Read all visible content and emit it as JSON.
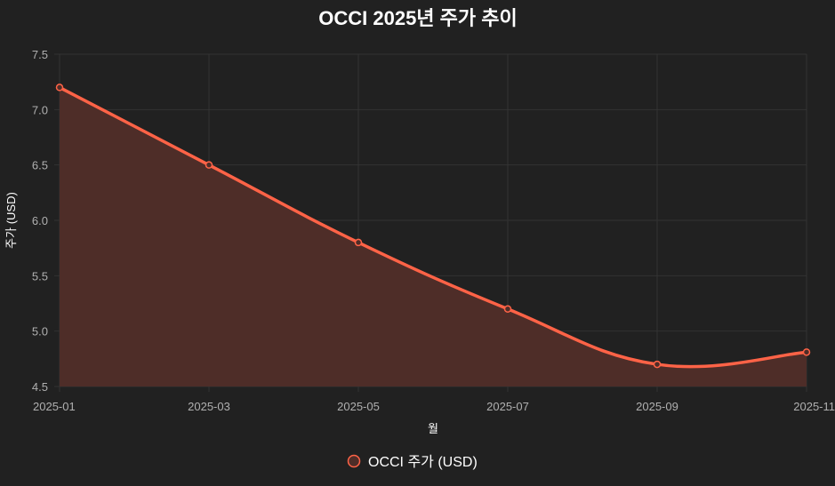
{
  "chart_data": {
    "type": "area",
    "title": "OCCI 2025년 주가 추이",
    "xlabel": "월",
    "ylabel": "주가 (USD)",
    "categories": [
      "2025-01",
      "2025-03",
      "2025-05",
      "2025-07",
      "2025-09",
      "2025-11"
    ],
    "series": [
      {
        "name": "OCCI 주가 (USD)",
        "values": [
          7.2,
          6.5,
          5.8,
          5.2,
          4.7,
          4.81
        ]
      }
    ],
    "ylim": [
      4.5,
      7.5
    ],
    "yticks": [
      "4.5",
      "5.0",
      "5.5",
      "6.0",
      "6.5",
      "7.0",
      "7.5"
    ],
    "grid": true,
    "legend": "bottom",
    "colors": {
      "line": "#ff6347",
      "fill": "#4e2d28",
      "background": "#212121"
    }
  }
}
